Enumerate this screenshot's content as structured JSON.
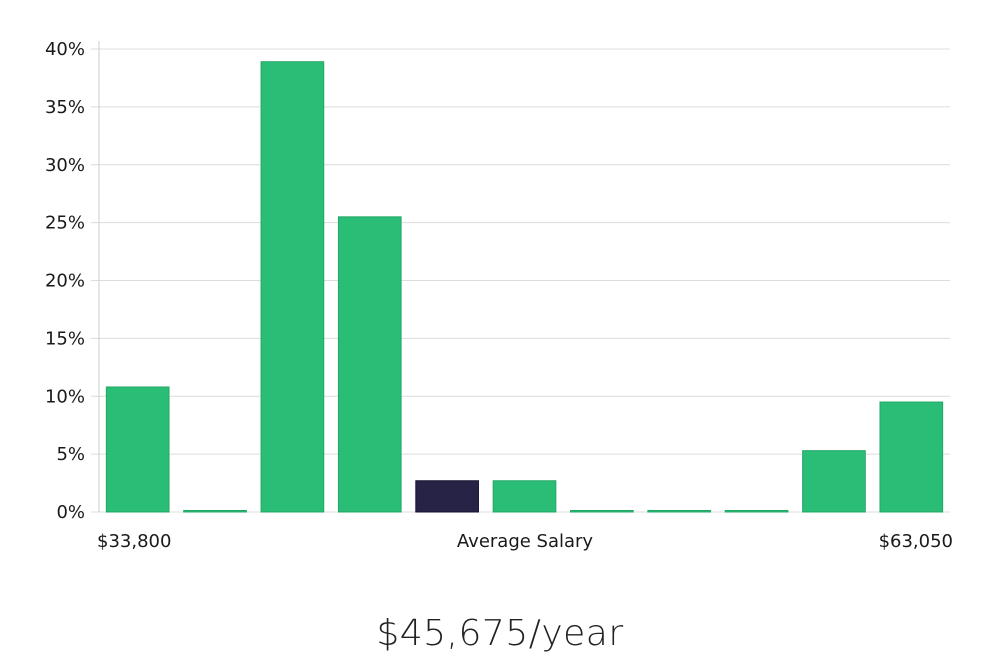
{
  "chart_data": {
    "type": "bar",
    "title": "",
    "xlabel": "Average Salary",
    "ylabel": "",
    "x_min_label": "$33,800",
    "x_max_label": "$63,050",
    "ylim": [
      0,
      40
    ],
    "y_ticks": [
      0,
      5,
      10,
      15,
      20,
      25,
      30,
      35,
      40
    ],
    "y_tick_suffix": "%",
    "grid": true,
    "values": [
      10.8,
      0.1,
      38.9,
      25.5,
      2.7,
      2.7,
      0.1,
      0.1,
      0.1,
      5.3,
      9.5
    ],
    "highlight_index": 4,
    "colors": {
      "bar": "#2abd76",
      "bar_edge": "#22a866",
      "highlight": "#262347",
      "grid": "#dcdcdc",
      "axis": "#cccccc"
    }
  },
  "salary": {
    "display": "$45,675/year"
  }
}
